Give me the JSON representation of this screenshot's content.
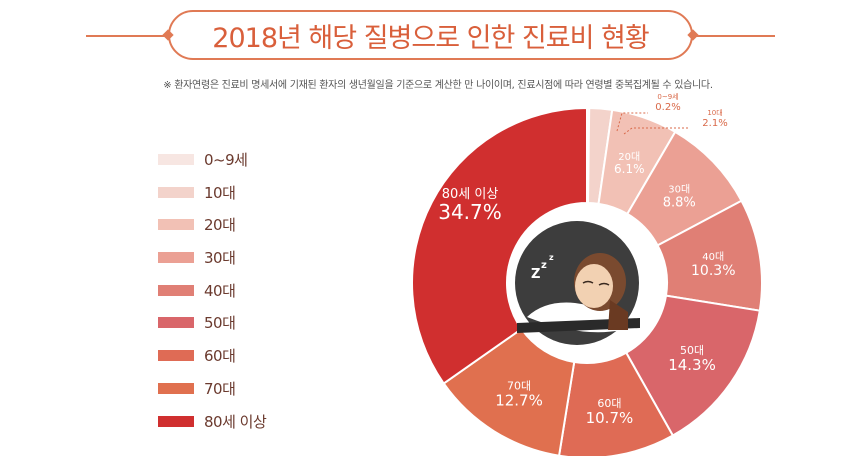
{
  "title": "2018년 해당 질병으로 인한 진료비 현황",
  "note": "※ 환자연령은 진료비 명세서에 기재된 환자의 생년월일을 기준으로 계산한 만 나이이며, 진료시점에 따라 연령별 중복집계될 수 있습니다.",
  "colors": {
    "accent": "#e07a55",
    "title_text": "#d95f3b",
    "slices": [
      "#f7e6e2",
      "#f3d3cb",
      "#f2c1b5",
      "#eba094",
      "#e07f75",
      "#d9666a",
      "#df6b55",
      "#e0704f",
      "#d02f2f"
    ]
  },
  "legend": [
    "0~9세",
    "10대",
    "20대",
    "30대",
    "40대",
    "50대",
    "60대",
    "70대",
    "80세 이상"
  ],
  "chart_data": {
    "type": "pie",
    "donut": true,
    "title": "2018년 해당 질병으로 인한 진료비 현황",
    "categories": [
      "0~9세",
      "10대",
      "20대",
      "30대",
      "40대",
      "50대",
      "60대",
      "70대",
      "80세 이상"
    ],
    "values": [
      0.2,
      2.1,
      6.1,
      8.8,
      10.3,
      14.3,
      10.7,
      12.7,
      34.7
    ],
    "labels": [
      "0.2%",
      "2.1%",
      "6.1%",
      "8.8%",
      "10.3%",
      "14.3%",
      "10.7%",
      "12.7%",
      "34.7%"
    ],
    "slice_names": [
      "0~9세",
      "10대",
      "20대",
      "30대",
      "40대",
      "50대",
      "60대",
      "70대",
      "80세 이상"
    ]
  }
}
